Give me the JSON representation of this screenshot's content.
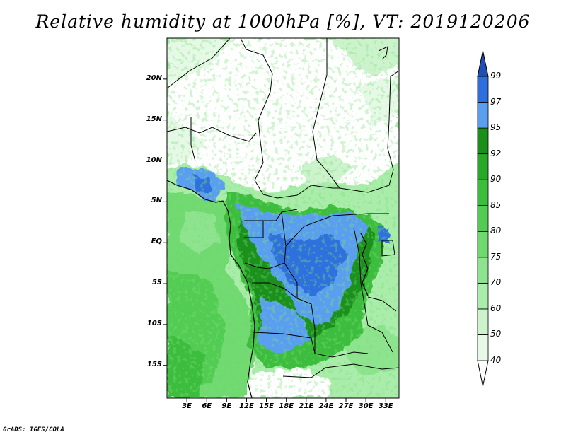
{
  "title": "Relative humidity at 1000hPa [%], VT: 2019120206",
  "credit": "GrADS: IGES/COLA",
  "map": {
    "lat_range": [
      -19,
      25
    ],
    "lon_range": [
      0,
      35
    ],
    "lat_ticks": [
      {
        "value": 20,
        "label": "20N"
      },
      {
        "value": 15,
        "label": "15N"
      },
      {
        "value": 10,
        "label": "10N"
      },
      {
        "value": 5,
        "label": "5N"
      },
      {
        "value": 0,
        "label": "EQ"
      },
      {
        "value": -5,
        "label": "5S"
      },
      {
        "value": -10,
        "label": "10S"
      },
      {
        "value": -15,
        "label": "15S"
      }
    ],
    "lon_ticks": [
      {
        "value": 3,
        "label": "3E"
      },
      {
        "value": 6,
        "label": "6E"
      },
      {
        "value": 9,
        "label": "9E"
      },
      {
        "value": 12,
        "label": "12E"
      },
      {
        "value": 15,
        "label": "15E"
      },
      {
        "value": 18,
        "label": "18E"
      },
      {
        "value": 21,
        "label": "21E"
      },
      {
        "value": 24,
        "label": "24E"
      },
      {
        "value": 27,
        "label": "27E"
      },
      {
        "value": 30,
        "label": "30E"
      },
      {
        "value": 33,
        "label": "33E"
      }
    ]
  },
  "colorbar": {
    "levels": [
      "40",
      "50",
      "60",
      "70",
      "75",
      "80",
      "85",
      "90",
      "92",
      "95",
      "97",
      "99"
    ],
    "colors": [
      "#ffffff",
      "#e6f9e6",
      "#cdf3cd",
      "#aaecaa",
      "#8ee48e",
      "#6fd96f",
      "#53cc53",
      "#3cbd3c",
      "#28a828",
      "#1a901a",
      "#5a9fef",
      "#2e6fdd",
      "#1f4fb3"
    ]
  }
}
